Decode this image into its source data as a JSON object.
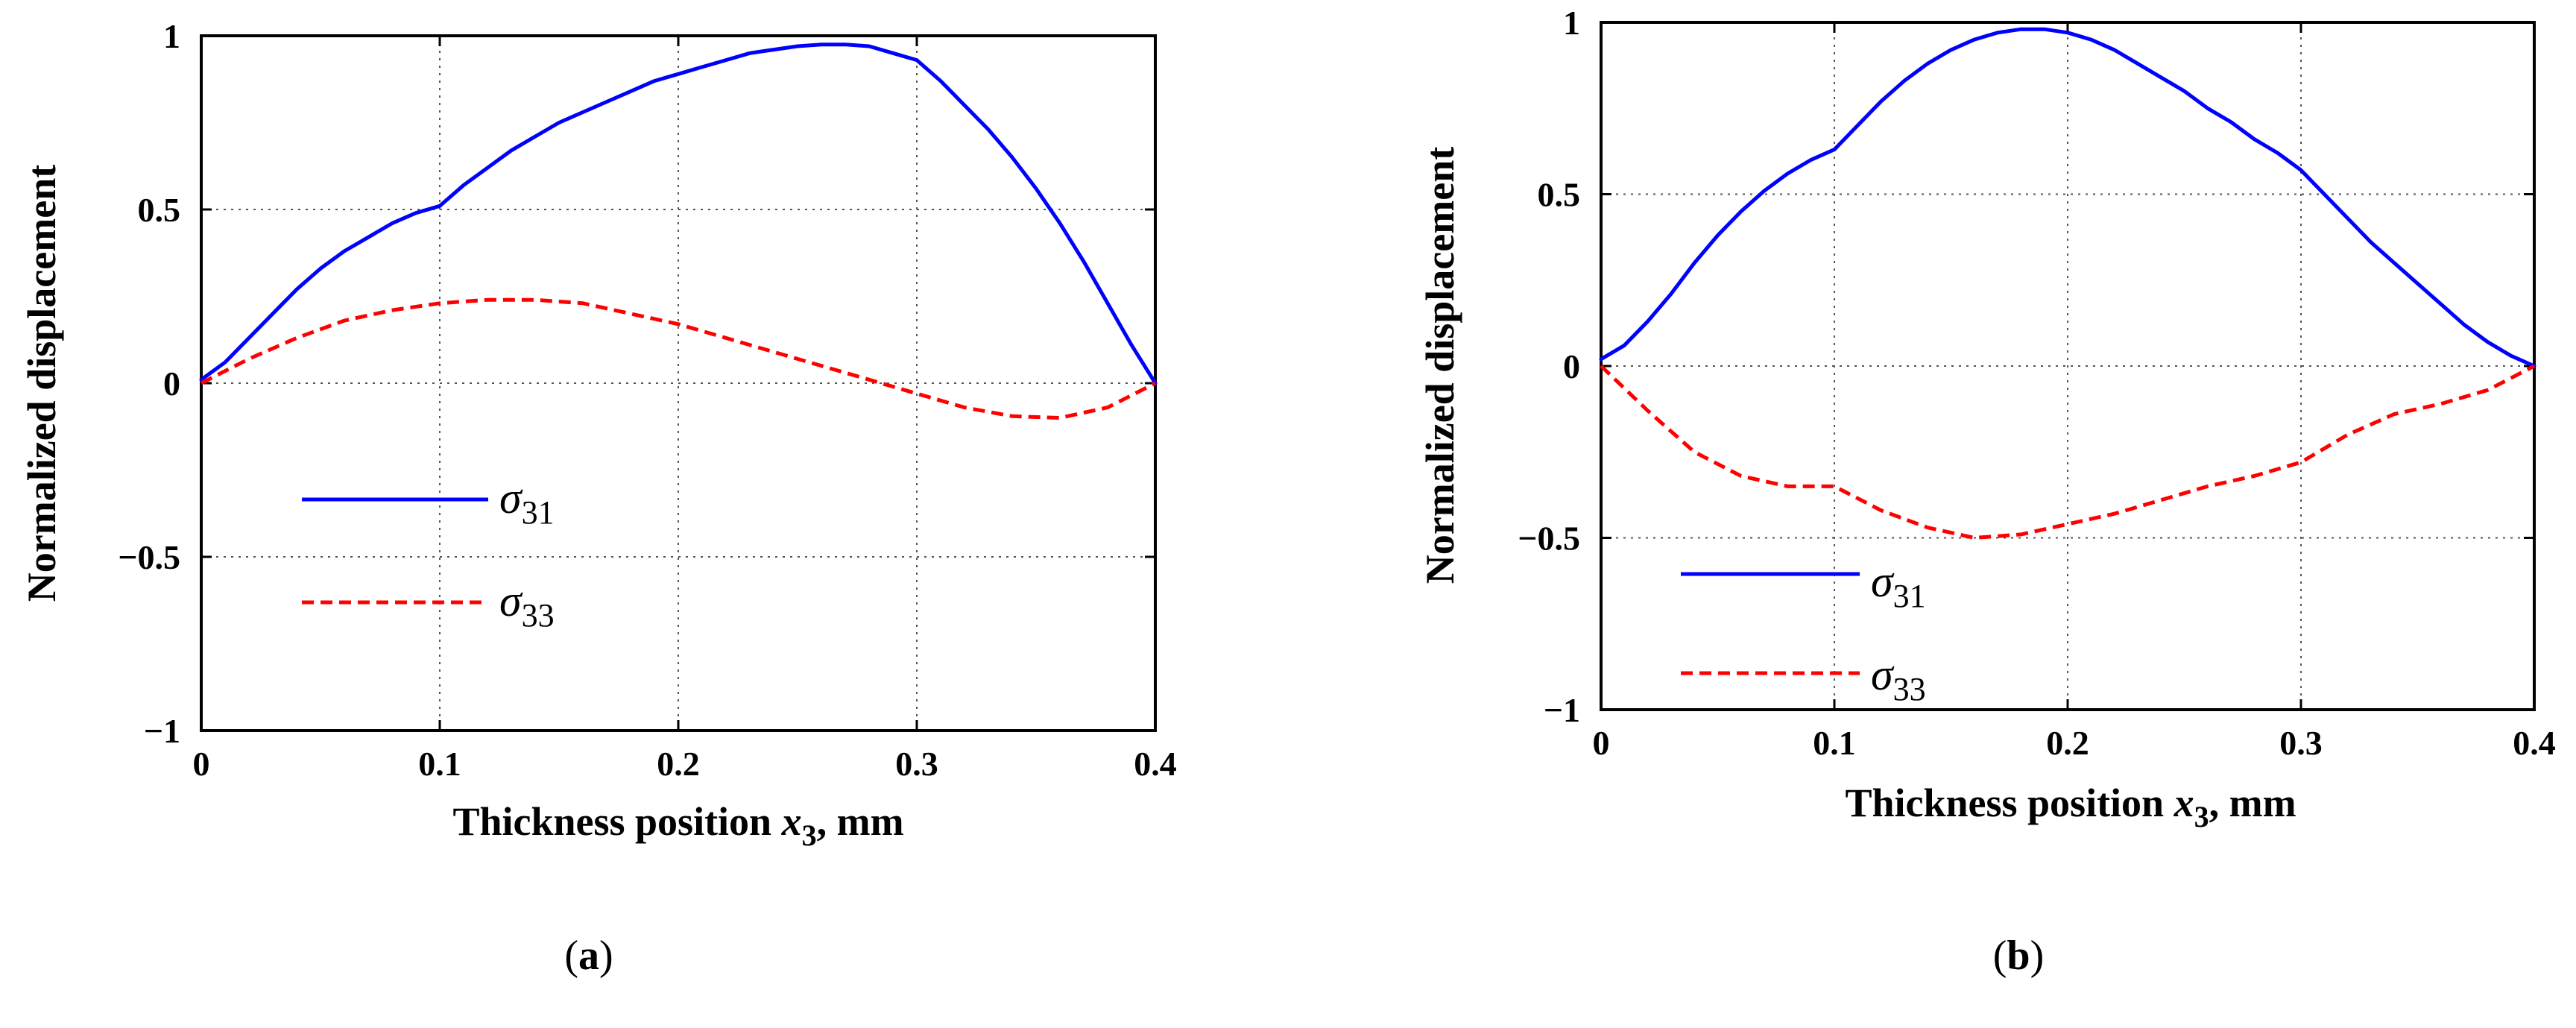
{
  "chart_data": [
    {
      "type": "line",
      "panel_label_prefix": "(",
      "panel_label_letter": "a",
      "panel_label_suffix": ")",
      "xlabel_main": "Thickness position ",
      "xlabel_var": "x",
      "xlabel_sub": "3",
      "xlabel_unit": ", mm",
      "ylabel": "Normalized displacement",
      "xlim": [
        0,
        0.4
      ],
      "ylim": [
        -1,
        1
      ],
      "xticks": [
        0,
        0.1,
        0.2,
        0.3,
        0.4
      ],
      "xtick_labels": [
        "0",
        "0.1",
        "0.2",
        "0.3",
        "0.4"
      ],
      "yticks": [
        -1,
        -0.5,
        0,
        0.5,
        1
      ],
      "ytick_labels": [
        "−1",
        "−0.5",
        "0",
        "0.5",
        "1"
      ],
      "grid": true,
      "legend_position": "lower-left",
      "series": [
        {
          "name_symbol": "σ",
          "name_sub": "31",
          "color": "#0000ff",
          "dash": "solid",
          "x": [
            0,
            0.01,
            0.02,
            0.03,
            0.04,
            0.05,
            0.06,
            0.07,
            0.08,
            0.09,
            0.1,
            0.11,
            0.12,
            0.13,
            0.14,
            0.15,
            0.16,
            0.17,
            0.18,
            0.19,
            0.2,
            0.21,
            0.22,
            0.23,
            0.24,
            0.25,
            0.26,
            0.27,
            0.28,
            0.29,
            0.3,
            0.31,
            0.32,
            0.33,
            0.34,
            0.35,
            0.36,
            0.37,
            0.38,
            0.39,
            0.4
          ],
          "y": [
            0.01,
            0.06,
            0.13,
            0.2,
            0.27,
            0.33,
            0.38,
            0.42,
            0.46,
            0.49,
            0.51,
            0.57,
            0.62,
            0.67,
            0.71,
            0.75,
            0.78,
            0.81,
            0.84,
            0.87,
            0.89,
            0.91,
            0.93,
            0.95,
            0.96,
            0.97,
            0.975,
            0.975,
            0.97,
            0.95,
            0.93,
            0.87,
            0.8,
            0.73,
            0.65,
            0.56,
            0.46,
            0.35,
            0.23,
            0.11,
            0.0
          ]
        },
        {
          "name_symbol": "σ",
          "name_sub": "33",
          "color": "#ff0000",
          "dash": "dashed",
          "x": [
            0,
            0.02,
            0.04,
            0.06,
            0.08,
            0.1,
            0.12,
            0.14,
            0.16,
            0.18,
            0.2,
            0.22,
            0.24,
            0.26,
            0.28,
            0.3,
            0.32,
            0.34,
            0.36,
            0.38,
            0.4
          ],
          "y": [
            0.0,
            0.07,
            0.13,
            0.18,
            0.21,
            0.23,
            0.24,
            0.24,
            0.23,
            0.2,
            0.17,
            0.13,
            0.09,
            0.05,
            0.01,
            -0.03,
            -0.07,
            -0.095,
            -0.1,
            -0.07,
            0.0
          ]
        }
      ]
    },
    {
      "type": "line",
      "panel_label_prefix": "(",
      "panel_label_letter": "b",
      "panel_label_suffix": ")",
      "xlabel_main": "Thickness position ",
      "xlabel_var": "x",
      "xlabel_sub": "3",
      "xlabel_unit": ", mm",
      "ylabel": "Normalized displacement",
      "xlim": [
        0,
        0.4
      ],
      "ylim": [
        -1,
        1
      ],
      "xticks": [
        0,
        0.1,
        0.2,
        0.3,
        0.4
      ],
      "xtick_labels": [
        "0",
        "0.1",
        "0.2",
        "0.3",
        "0.4"
      ],
      "yticks": [
        -1,
        -0.5,
        0,
        0.5,
        1
      ],
      "ytick_labels": [
        "−1",
        "−0.5",
        "0",
        "0.5",
        "1"
      ],
      "grid": true,
      "legend_position": "lower-left",
      "series": [
        {
          "name_symbol": "σ",
          "name_sub": "31",
          "color": "#0000ff",
          "dash": "solid",
          "x": [
            0,
            0.01,
            0.02,
            0.03,
            0.04,
            0.05,
            0.06,
            0.07,
            0.08,
            0.09,
            0.1,
            0.11,
            0.12,
            0.13,
            0.14,
            0.15,
            0.16,
            0.17,
            0.18,
            0.19,
            0.2,
            0.21,
            0.22,
            0.23,
            0.24,
            0.25,
            0.26,
            0.27,
            0.28,
            0.29,
            0.3,
            0.31,
            0.32,
            0.33,
            0.34,
            0.35,
            0.36,
            0.37,
            0.38,
            0.39,
            0.4
          ],
          "y": [
            0.02,
            0.06,
            0.13,
            0.21,
            0.3,
            0.38,
            0.45,
            0.51,
            0.56,
            0.6,
            0.63,
            0.7,
            0.77,
            0.83,
            0.88,
            0.92,
            0.95,
            0.97,
            0.98,
            0.98,
            0.97,
            0.95,
            0.92,
            0.88,
            0.84,
            0.8,
            0.75,
            0.71,
            0.66,
            0.62,
            0.57,
            0.5,
            0.43,
            0.36,
            0.3,
            0.24,
            0.18,
            0.12,
            0.07,
            0.03,
            0.0
          ]
        },
        {
          "name_symbol": "σ",
          "name_sub": "33",
          "color": "#ff0000",
          "dash": "dashed",
          "x": [
            0,
            0.02,
            0.04,
            0.06,
            0.08,
            0.1,
            0.12,
            0.14,
            0.16,
            0.18,
            0.2,
            0.22,
            0.24,
            0.26,
            0.28,
            0.3,
            0.32,
            0.34,
            0.36,
            0.38,
            0.4
          ],
          "y": [
            0.0,
            -0.13,
            -0.25,
            -0.32,
            -0.35,
            -0.35,
            -0.42,
            -0.47,
            -0.5,
            -0.49,
            -0.46,
            -0.43,
            -0.39,
            -0.35,
            -0.32,
            -0.28,
            -0.2,
            -0.14,
            -0.11,
            -0.07,
            0.0
          ]
        }
      ]
    }
  ]
}
